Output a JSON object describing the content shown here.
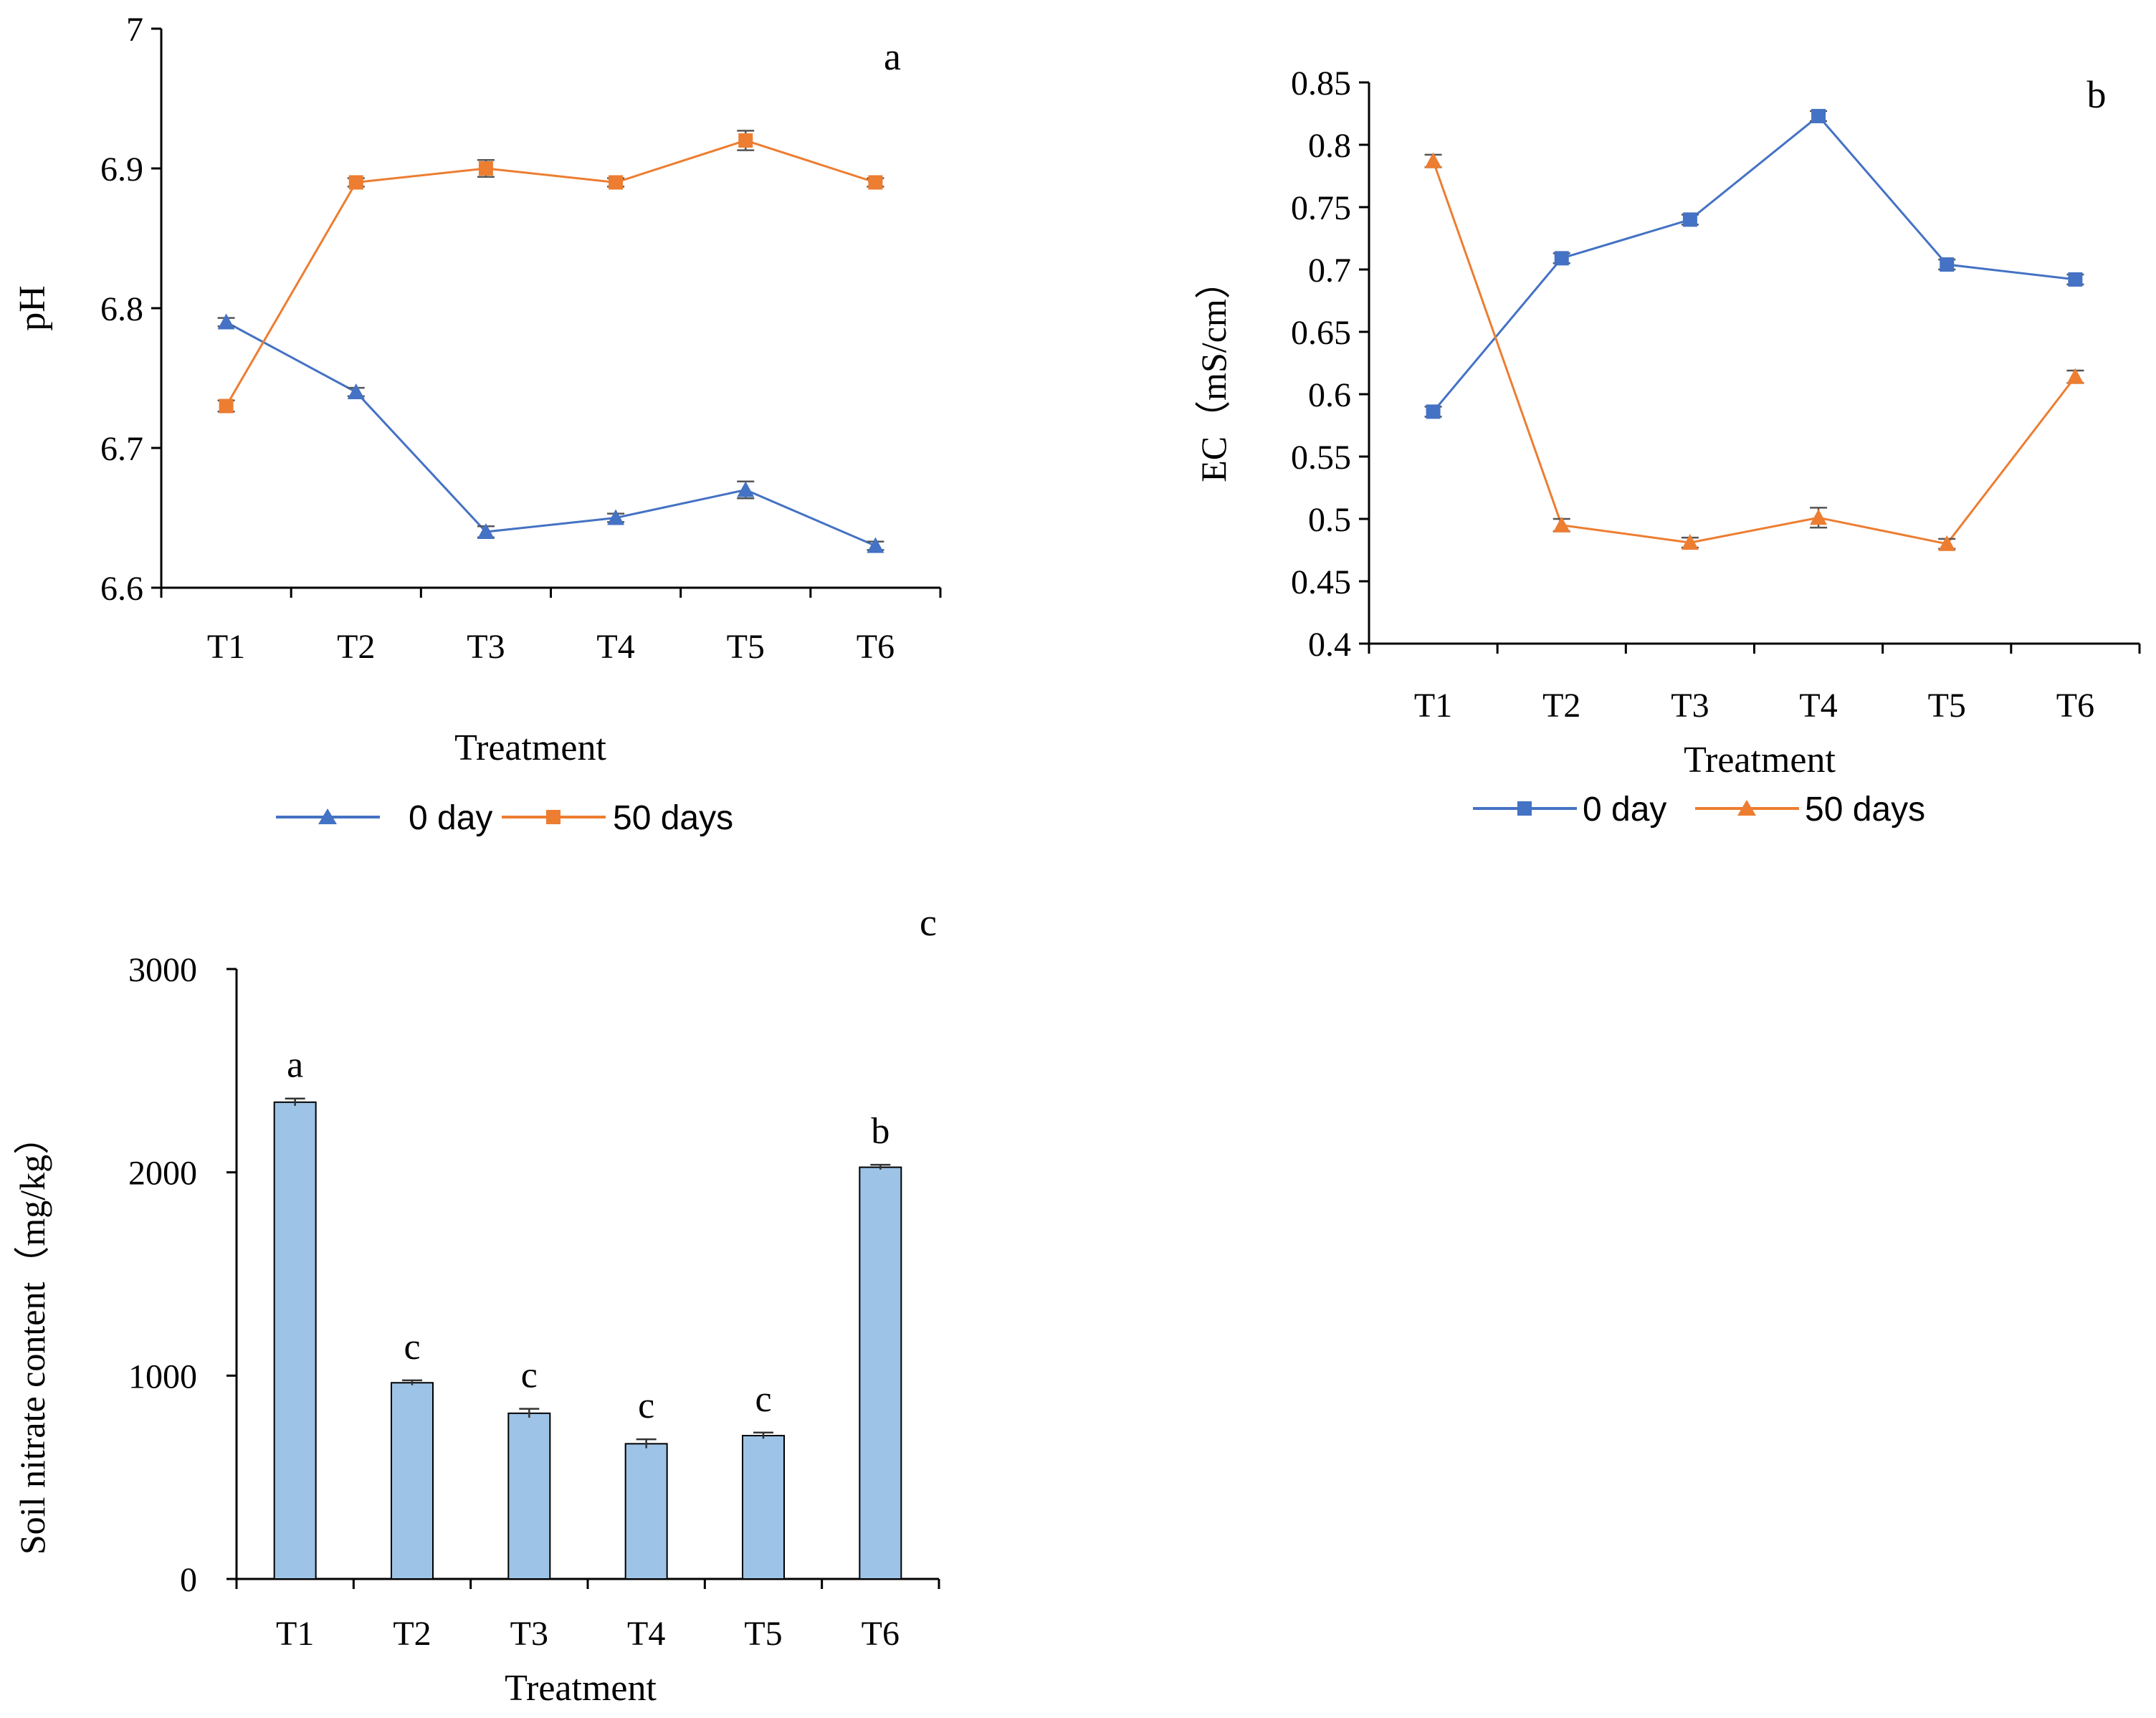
{
  "chart_data": [
    {
      "id": "a",
      "type": "line",
      "panel_label": "a",
      "categories": [
        "T1",
        "T2",
        "T3",
        "T4",
        "T5",
        "T6"
      ],
      "xlabel": "Treatment",
      "ylabel": "pH",
      "ylim": [
        6.6,
        7
      ],
      "yticks": [
        "6.6",
        "6.7",
        "6.8",
        "6.9",
        "7"
      ],
      "grid": false,
      "legend_position": "bottom",
      "series": [
        {
          "name": "0 day",
          "marker": "triangle",
          "color": "#4472C4",
          "values": [
            6.79,
            6.74,
            6.64,
            6.65,
            6.67,
            6.63
          ],
          "errors": [
            0.003,
            0.003,
            0.004,
            0.003,
            0.006,
            0.003
          ]
        },
        {
          "name": "50 days",
          "marker": "square",
          "color": "#ED7D31",
          "values": [
            6.73,
            6.89,
            6.9,
            6.89,
            6.92,
            6.89
          ],
          "errors": [
            0.004,
            0.003,
            0.006,
            0.003,
            0.007,
            0.003
          ]
        }
      ]
    },
    {
      "id": "b",
      "type": "line",
      "panel_label": "b",
      "categories": [
        "T1",
        "T2",
        "T3",
        "T4",
        "T5",
        "T6"
      ],
      "xlabel": "Treatment",
      "ylabel": "EC（mS/cm）",
      "ylim": [
        0.4,
        0.85
      ],
      "yticks": [
        "0.4",
        "0.45",
        "0.5",
        "0.55",
        "0.6",
        "0.65",
        "0.7",
        "0.75",
        "0.8",
        "0.85"
      ],
      "grid": false,
      "legend_position": "bottom",
      "series": [
        {
          "name": "0 day",
          "marker": "square",
          "color": "#4472C4",
          "values": [
            0.586,
            0.709,
            0.74,
            0.823,
            0.704,
            0.692
          ],
          "errors": [
            0.004,
            0.004,
            0.004,
            0.004,
            0.004,
            0.004
          ]
        },
        {
          "name": "50 days",
          "marker": "triangle",
          "color": "#ED7D31",
          "values": [
            0.787,
            0.495,
            0.481,
            0.501,
            0.48,
            0.614
          ],
          "errors": [
            0.005,
            0.005,
            0.004,
            0.008,
            0.004,
            0.005
          ]
        }
      ]
    },
    {
      "id": "c",
      "type": "bar",
      "panel_label": "c",
      "categories": [
        "T1",
        "T2",
        "T3",
        "T4",
        "T5",
        "T6"
      ],
      "xlabel": "Treatment",
      "ylabel": "Soil nitrate content（mg/kg）",
      "ylim": [
        0,
        3000
      ],
      "yticks": [
        "0",
        "1000",
        "2000",
        "3000"
      ],
      "grid": false,
      "color": "#9DC3E6",
      "values": [
        2345,
        965,
        815,
        665,
        705,
        2025
      ],
      "errors": [
        18,
        12,
        22,
        22,
        15,
        12
      ],
      "significance_letters": [
        "a",
        "c",
        "c",
        "c",
        "c",
        "b"
      ]
    }
  ]
}
